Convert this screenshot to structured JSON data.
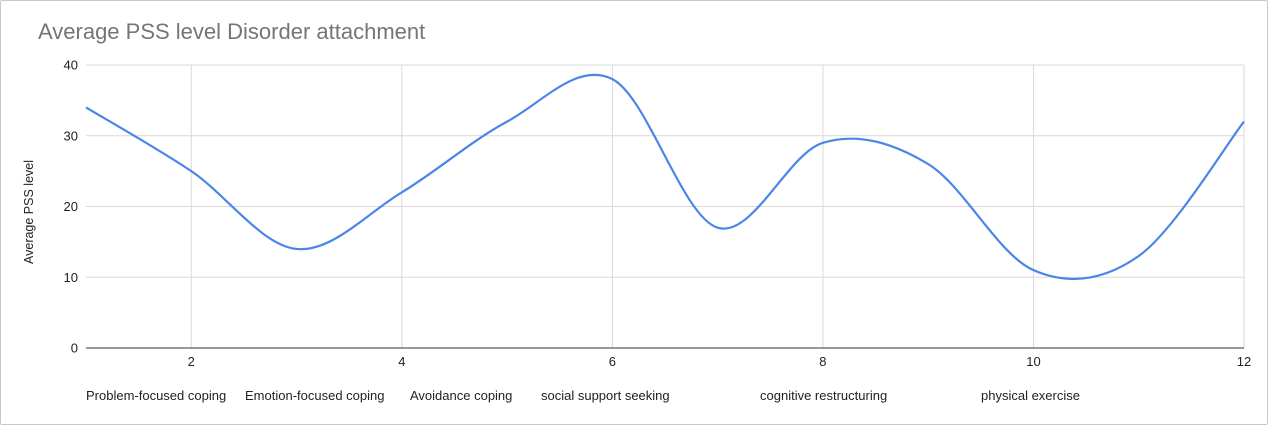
{
  "chart_data": {
    "type": "line",
    "title": "Average PSS level Disorder attachment",
    "xlabel": "",
    "ylabel": "Average PSS level",
    "xlim": [
      1,
      12
    ],
    "ylim": [
      0,
      40
    ],
    "x_ticks": [
      2,
      4,
      6,
      8,
      10,
      12
    ],
    "y_ticks": [
      0,
      10,
      20,
      30,
      40
    ],
    "grid": true,
    "legend": "none",
    "line_color": "#4a86e8",
    "series": [
      {
        "x": [
          1,
          2,
          3,
          4,
          5,
          6,
          7,
          8,
          9,
          10,
          11,
          12
        ],
        "values": [
          34,
          25,
          14,
          22,
          32,
          38,
          17,
          29,
          26,
          11,
          13,
          32
        ]
      }
    ],
    "category_labels": [
      "Problem-focused coping",
      "Emotion-focused coping",
      "Avoidance coping",
      "social support seeking",
      "cognitive restructuring",
      "physical exercise"
    ]
  }
}
